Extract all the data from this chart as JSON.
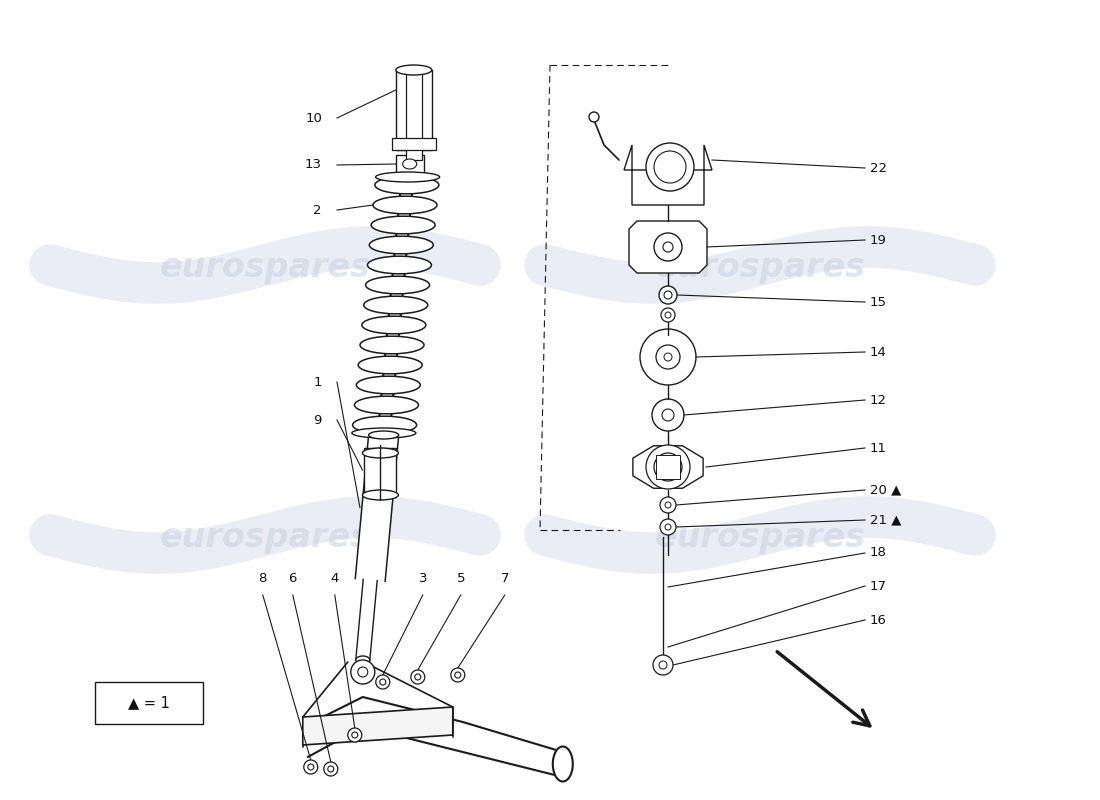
{
  "background_color": "#ffffff",
  "line_color": "#1a1a1a",
  "watermark_color": "#c8d2e2",
  "watermark_text": "eurospares",
  "fig_width": 11.0,
  "fig_height": 8.0,
  "dpi": 100,
  "label_fontsize": 9.5
}
